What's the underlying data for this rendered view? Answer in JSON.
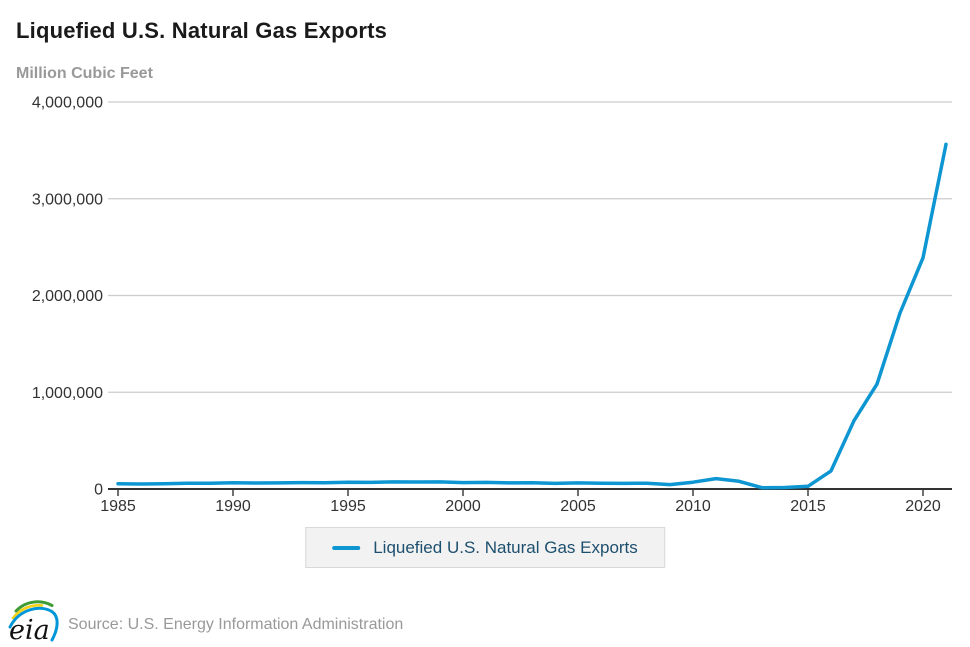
{
  "title": "Liquefied U.S. Natural Gas Exports",
  "subtitle": "Million Cubic Feet",
  "legend": {
    "label": "Liquefied U.S. Natural Gas Exports"
  },
  "footer": {
    "source": "Source: U.S. Energy Information Administration",
    "logo_text": "eia"
  },
  "colors": {
    "line": "#0e96d2",
    "title": "#1a1a1a",
    "subtitle": "#999999",
    "gridline": "#cccccc",
    "axis": "#333333",
    "tick_label": "#333333",
    "legend_text": "#1d4f6e",
    "legend_bg": "#f2f2f2",
    "legend_border": "#d9d9d9",
    "logo_green": "#3f9c35",
    "logo_yellow": "#f7d117",
    "logo_blue": "#0096d7"
  },
  "chart_data": {
    "type": "line",
    "title": "Liquefied U.S. Natural Gas Exports",
    "xlabel": "",
    "ylabel": "Million Cubic Feet",
    "x": [
      1985,
      1986,
      1987,
      1988,
      1989,
      1990,
      1991,
      1992,
      1993,
      1994,
      1995,
      1996,
      1997,
      1998,
      1999,
      2000,
      2001,
      2002,
      2003,
      2004,
      2005,
      2006,
      2007,
      2008,
      2009,
      2010,
      2011,
      2012,
      2013,
      2014,
      2015,
      2016,
      2017,
      2018,
      2019,
      2020,
      2021
    ],
    "series": [
      {
        "name": "Liquefied U.S. Natural Gas Exports",
        "values": [
          55000,
          52000,
          55000,
          60000,
          60000,
          64000,
          62000,
          63000,
          66000,
          64000,
          70000,
          68000,
          73000,
          72000,
          73000,
          66000,
          68000,
          63000,
          64000,
          58000,
          63000,
          60000,
          58000,
          60000,
          45000,
          70000,
          107000,
          80000,
          13000,
          16000,
          28000,
          187000,
          706000,
          1084000,
          1819000,
          2390000,
          3563000
        ]
      }
    ],
    "xlim": [
      1985,
      2021
    ],
    "ylim": [
      0,
      4000000
    ],
    "x_ticks": [
      1985,
      1990,
      1995,
      2000,
      2005,
      2010,
      2015,
      2020
    ],
    "y_ticks": [
      0,
      1000000,
      2000000,
      3000000,
      4000000
    ],
    "grid": "horizontal",
    "legend_position": "bottom"
  }
}
